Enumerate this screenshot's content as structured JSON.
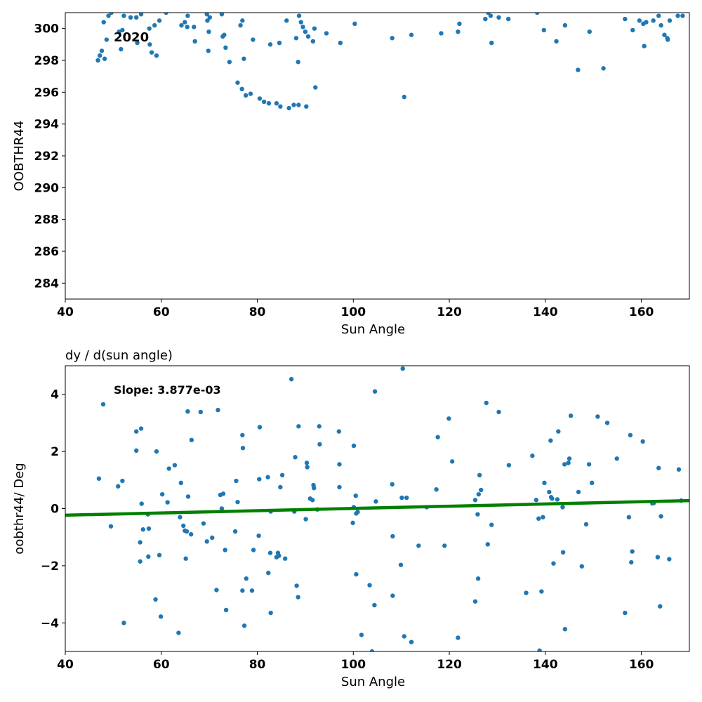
{
  "chart_data": [
    {
      "type": "scatter",
      "title": "",
      "xlabel": "Sun Angle",
      "ylabel": "OOBTHR44",
      "xlim": [
        40,
        170
      ],
      "ylim": [
        283,
        301
      ],
      "xticks": [
        "40",
        "60",
        "80",
        "100",
        "120",
        "140",
        "160"
      ],
      "yticks": [
        "284",
        "286",
        "288",
        "290",
        "292",
        "294",
        "296",
        "298",
        "300"
      ],
      "annotation": "2020",
      "grid": false,
      "marker_color": "#1f77b4",
      "points": [
        [
          46.8,
          298.0
        ],
        [
          47.2,
          298.3
        ],
        [
          47.6,
          298.6
        ],
        [
          48.0,
          300.4
        ],
        [
          48.2,
          298.1
        ],
        [
          48.6,
          299.3
        ],
        [
          49.0,
          300.8
        ],
        [
          49.6,
          301.0
        ],
        [
          51.2,
          299.8
        ],
        [
          51.6,
          298.7
        ],
        [
          51.9,
          299.9
        ],
        [
          52.2,
          300.8
        ],
        [
          53.6,
          300.7
        ],
        [
          54.8,
          300.7
        ],
        [
          55.0,
          299.1
        ],
        [
          55.8,
          300.9
        ],
        [
          57.5,
          300.0
        ],
        [
          57.6,
          299.0
        ],
        [
          58.0,
          298.5
        ],
        [
          58.6,
          300.2
        ],
        [
          59.0,
          298.3
        ],
        [
          59.6,
          300.5
        ],
        [
          61.0,
          301.0
        ],
        [
          64.2,
          300.2
        ],
        [
          64.9,
          300.4
        ],
        [
          65.4,
          300.1
        ],
        [
          65.5,
          300.8
        ],
        [
          66.8,
          300.1
        ],
        [
          67.0,
          299.2
        ],
        [
          69.5,
          300.9
        ],
        [
          69.6,
          300.5
        ],
        [
          69.8,
          298.6
        ],
        [
          69.9,
          299.8
        ],
        [
          70.1,
          300.7
        ],
        [
          72.6,
          300.9
        ],
        [
          72.8,
          299.5
        ],
        [
          73.1,
          299.6
        ],
        [
          73.4,
          298.8
        ],
        [
          74.2,
          297.9
        ],
        [
          75.9,
          296.6
        ],
        [
          76.5,
          300.2
        ],
        [
          76.8,
          296.2
        ],
        [
          76.9,
          300.5
        ],
        [
          77.2,
          298.1
        ],
        [
          77.6,
          295.8
        ],
        [
          78.6,
          295.9
        ],
        [
          79.1,
          299.3
        ],
        [
          80.5,
          295.6
        ],
        [
          81.4,
          295.4
        ],
        [
          82.4,
          295.3
        ],
        [
          82.7,
          299.0
        ],
        [
          84.0,
          295.3
        ],
        [
          84.6,
          299.1
        ],
        [
          84.8,
          295.1
        ],
        [
          86.1,
          300.5
        ],
        [
          86.6,
          295.0
        ],
        [
          87.6,
          295.2
        ],
        [
          88.1,
          299.4
        ],
        [
          88.5,
          297.9
        ],
        [
          88.6,
          295.2
        ],
        [
          88.7,
          300.8
        ],
        [
          89.1,
          300.4
        ],
        [
          89.5,
          300.1
        ],
        [
          90.0,
          299.8
        ],
        [
          90.2,
          295.1
        ],
        [
          90.6,
          299.5
        ],
        [
          91.6,
          299.2
        ],
        [
          91.9,
          300.0
        ],
        [
          92.1,
          296.3
        ],
        [
          94.4,
          299.7
        ],
        [
          97.3,
          299.1
        ],
        [
          100.3,
          300.3
        ],
        [
          108.1,
          299.4
        ],
        [
          110.6,
          295.7
        ],
        [
          112.1,
          299.6
        ],
        [
          118.3,
          299.7
        ],
        [
          121.8,
          299.8
        ],
        [
          122.1,
          300.3
        ],
        [
          127.5,
          300.6
        ],
        [
          128.1,
          301.0
        ],
        [
          128.6,
          300.8
        ],
        [
          128.8,
          299.1
        ],
        [
          130.3,
          300.7
        ],
        [
          132.3,
          300.6
        ],
        [
          138.3,
          301.0
        ],
        [
          139.7,
          299.9
        ],
        [
          142.3,
          299.2
        ],
        [
          144.1,
          300.2
        ],
        [
          146.8,
          297.4
        ],
        [
          149.2,
          299.8
        ],
        [
          152.1,
          297.5
        ],
        [
          156.6,
          300.6
        ],
        [
          158.2,
          299.9
        ],
        [
          159.6,
          300.5
        ],
        [
          160.4,
          300.3
        ],
        [
          160.6,
          298.9
        ],
        [
          161.0,
          300.4
        ],
        [
          162.5,
          300.5
        ],
        [
          163.6,
          300.8
        ],
        [
          164.1,
          300.2
        ],
        [
          164.8,
          299.6
        ],
        [
          165.4,
          299.4
        ],
        [
          165.5,
          299.3
        ],
        [
          165.9,
          300.5
        ],
        [
          167.6,
          300.8
        ],
        [
          168.6,
          300.8
        ]
      ]
    },
    {
      "type": "scatter",
      "title": "dy / d(sun angle)",
      "xlabel": "Sun Angle",
      "ylabel": "oobthr44/ Deg",
      "xlim": [
        40,
        170
      ],
      "ylim": [
        -5,
        5
      ],
      "xticks": [
        "40",
        "60",
        "80",
        "100",
        "120",
        "140",
        "160"
      ],
      "yticks": [
        "−4",
        "−2",
        "0",
        "2",
        "4"
      ],
      "annotation": "Slope: 3.877e-03",
      "grid": false,
      "marker_color": "#1f77b4",
      "fit_line": {
        "color": "#008000",
        "x": [
          40,
          170
        ],
        "y": [
          -0.23,
          0.28
        ]
      },
      "points": [
        [
          47.0,
          1.05
        ],
        [
          47.9,
          3.65
        ],
        [
          49.5,
          -0.62
        ],
        [
          51.0,
          0.78
        ],
        [
          51.9,
          0.97
        ],
        [
          52.2,
          -4.0
        ],
        [
          54.8,
          2.7
        ],
        [
          54.8,
          2.03
        ],
        [
          55.6,
          -1.85
        ],
        [
          55.6,
          -1.18
        ],
        [
          55.8,
          2.8
        ],
        [
          55.9,
          0.17
        ],
        [
          56.2,
          -0.73
        ],
        [
          57.2,
          -0.2
        ],
        [
          57.3,
          -1.68
        ],
        [
          57.4,
          -0.7
        ],
        [
          58.8,
          -3.18
        ],
        [
          59.0,
          2.0
        ],
        [
          59.6,
          -1.63
        ],
        [
          59.9,
          -3.78
        ],
        [
          60.2,
          0.5
        ],
        [
          61.3,
          0.22
        ],
        [
          61.6,
          1.4
        ],
        [
          62.8,
          1.52
        ],
        [
          63.6,
          -4.35
        ],
        [
          63.9,
          -0.3
        ],
        [
          64.1,
          0.9
        ],
        [
          64.6,
          -0.6
        ],
        [
          64.9,
          -0.77
        ],
        [
          65.1,
          -1.75
        ],
        [
          65.3,
          -0.8
        ],
        [
          65.5,
          3.4
        ],
        [
          65.6,
          0.42
        ],
        [
          66.2,
          -0.9
        ],
        [
          66.3,
          2.4
        ],
        [
          68.2,
          3.38
        ],
        [
          68.8,
          -0.52
        ],
        [
          69.5,
          -1.15
        ],
        [
          70.6,
          -1.02
        ],
        [
          71.5,
          -2.85
        ],
        [
          71.8,
          3.45
        ],
        [
          72.3,
          0.48
        ],
        [
          72.6,
          0.0
        ],
        [
          72.9,
          0.52
        ],
        [
          73.3,
          -1.45
        ],
        [
          73.5,
          -3.55
        ],
        [
          75.4,
          -0.8
        ],
        [
          75.6,
          0.97
        ],
        [
          75.9,
          0.23
        ],
        [
          76.9,
          -2.87
        ],
        [
          76.9,
          2.57
        ],
        [
          77.0,
          2.12
        ],
        [
          77.3,
          -4.1
        ],
        [
          77.7,
          -2.45
        ],
        [
          78.9,
          -2.87
        ],
        [
          79.2,
          -1.45
        ],
        [
          80.3,
          -0.95
        ],
        [
          80.4,
          1.03
        ],
        [
          80.5,
          2.85
        ],
        [
          82.2,
          1.1
        ],
        [
          82.3,
          -2.25
        ],
        [
          82.7,
          -1.55
        ],
        [
          82.8,
          -3.65
        ],
        [
          82.8,
          -0.1
        ],
        [
          84.0,
          -1.7
        ],
        [
          84.3,
          -1.55
        ],
        [
          84.5,
          -1.65
        ],
        [
          84.8,
          0.75
        ],
        [
          85.2,
          1.17
        ],
        [
          85.8,
          -1.75
        ],
        [
          87.1,
          4.53
        ],
        [
          87.7,
          -0.1
        ],
        [
          87.9,
          1.8
        ],
        [
          88.2,
          -2.7
        ],
        [
          88.5,
          -3.1
        ],
        [
          88.6,
          2.88
        ],
        [
          90.1,
          -0.37
        ],
        [
          90.3,
          1.6
        ],
        [
          90.4,
          1.45
        ],
        [
          91.0,
          0.35
        ],
        [
          91.5,
          0.3
        ],
        [
          91.7,
          0.82
        ],
        [
          91.8,
          0.72
        ],
        [
          92.5,
          -0.03
        ],
        [
          92.9,
          2.88
        ],
        [
          93.0,
          2.25
        ],
        [
          97.0,
          2.7
        ],
        [
          97.1,
          1.55
        ],
        [
          97.1,
          0.75
        ],
        [
          99.9,
          -0.5
        ],
        [
          100.1,
          0.05
        ],
        [
          100.1,
          2.2
        ],
        [
          100.5,
          0.45
        ],
        [
          100.6,
          -0.17
        ],
        [
          100.6,
          -2.3
        ],
        [
          100.9,
          -0.12
        ],
        [
          101.7,
          -4.42
        ],
        [
          103.4,
          -2.68
        ],
        [
          103.9,
          -5.0
        ],
        [
          104.4,
          -3.38
        ],
        [
          104.5,
          4.1
        ],
        [
          104.7,
          0.25
        ],
        [
          108.1,
          0.85
        ],
        [
          108.2,
          -0.97
        ],
        [
          108.2,
          -3.05
        ],
        [
          109.9,
          -1.97
        ],
        [
          110.1,
          0.38
        ],
        [
          110.3,
          4.9
        ],
        [
          110.6,
          -4.47
        ],
        [
          111.1,
          0.38
        ],
        [
          112.1,
          -4.67
        ],
        [
          113.6,
          -1.3
        ],
        [
          115.3,
          0.05
        ],
        [
          117.3,
          0.67
        ],
        [
          117.6,
          2.5
        ],
        [
          119.0,
          -1.3
        ],
        [
          119.9,
          3.15
        ],
        [
          120.6,
          1.65
        ],
        [
          121.8,
          -4.52
        ],
        [
          125.4,
          0.3
        ],
        [
          125.4,
          -3.25
        ],
        [
          125.9,
          -0.2
        ],
        [
          126.0,
          -2.45
        ],
        [
          126.1,
          0.5
        ],
        [
          126.3,
          1.17
        ],
        [
          126.6,
          0.65
        ],
        [
          127.7,
          3.7
        ],
        [
          128.0,
          -1.25
        ],
        [
          128.8,
          -0.57
        ],
        [
          130.3,
          3.38
        ],
        [
          132.4,
          1.52
        ],
        [
          136.0,
          -2.95
        ],
        [
          137.3,
          1.85
        ],
        [
          138.1,
          0.3
        ],
        [
          138.6,
          -0.35
        ],
        [
          138.8,
          -4.97
        ],
        [
          139.2,
          -2.9
        ],
        [
          139.5,
          -0.3
        ],
        [
          139.8,
          0.9
        ],
        [
          140.8,
          0.58
        ],
        [
          141.1,
          2.38
        ],
        [
          141.2,
          0.4
        ],
        [
          141.4,
          0.35
        ],
        [
          141.7,
          -1.92
        ],
        [
          142.5,
          0.32
        ],
        [
          142.7,
          2.7
        ],
        [
          143.6,
          0.05
        ],
        [
          143.7,
          -1.53
        ],
        [
          144.0,
          1.55
        ],
        [
          144.1,
          -4.22
        ],
        [
          144.8,
          1.6
        ],
        [
          145.0,
          1.75
        ],
        [
          145.3,
          3.25
        ],
        [
          146.9,
          0.58
        ],
        [
          147.6,
          -2.02
        ],
        [
          148.5,
          -0.55
        ],
        [
          149.1,
          1.55
        ],
        [
          149.7,
          0.9
        ],
        [
          150.9,
          3.22
        ],
        [
          152.9,
          3.0
        ],
        [
          154.9,
          1.75
        ],
        [
          156.6,
          -3.65
        ],
        [
          157.4,
          -0.3
        ],
        [
          157.7,
          2.57
        ],
        [
          157.9,
          -1.88
        ],
        [
          158.1,
          -1.5
        ],
        [
          160.3,
          2.35
        ],
        [
          162.3,
          0.18
        ],
        [
          162.6,
          0.2
        ],
        [
          163.4,
          -1.7
        ],
        [
          163.6,
          1.42
        ],
        [
          163.9,
          -3.42
        ],
        [
          164.1,
          -0.27
        ],
        [
          165.8,
          -1.77
        ],
        [
          167.8,
          1.37
        ],
        [
          168.3,
          0.28
        ]
      ]
    }
  ]
}
